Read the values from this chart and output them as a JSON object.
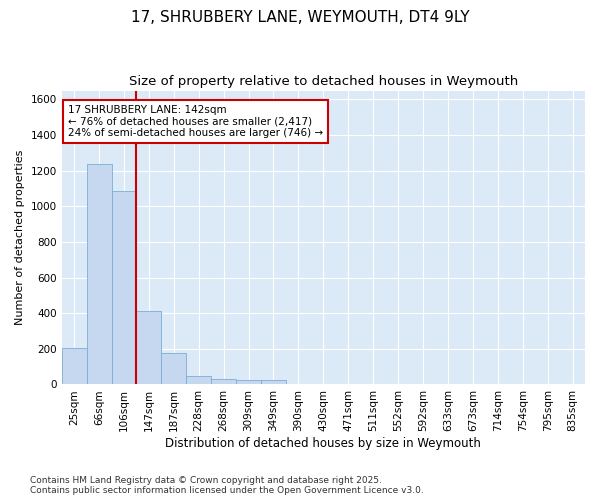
{
  "title": "17, SHRUBBERY LANE, WEYMOUTH, DT4 9LY",
  "subtitle": "Size of property relative to detached houses in Weymouth",
  "xlabel": "Distribution of detached houses by size in Weymouth",
  "ylabel": "Number of detached properties",
  "categories": [
    "25sqm",
    "66sqm",
    "106sqm",
    "147sqm",
    "187sqm",
    "228sqm",
    "268sqm",
    "309sqm",
    "349sqm",
    "390sqm",
    "430sqm",
    "471sqm",
    "511sqm",
    "552sqm",
    "592sqm",
    "633sqm",
    "673sqm",
    "714sqm",
    "754sqm",
    "795sqm",
    "835sqm"
  ],
  "values": [
    205,
    1235,
    1085,
    415,
    175,
    50,
    30,
    25,
    25,
    0,
    0,
    0,
    0,
    0,
    0,
    0,
    0,
    0,
    0,
    0,
    0
  ],
  "bar_color": "#c5d8ef",
  "bar_edge_color": "#7aaed4",
  "vline_color": "#cc0000",
  "annotation_line1": "17 SHRUBBERY LANE: 142sqm",
  "annotation_line2": "← 76% of detached houses are smaller (2,417)",
  "annotation_line3": "24% of semi-detached houses are larger (746) →",
  "annotation_box_edge_color": "#cc0000",
  "ylim": [
    0,
    1650
  ],
  "yticks": [
    0,
    200,
    400,
    600,
    800,
    1000,
    1200,
    1400,
    1600
  ],
  "plot_bg_color": "#dce9f7",
  "fig_bg_color": "#ffffff",
  "grid_color": "#ffffff",
  "footnote": "Contains HM Land Registry data © Crown copyright and database right 2025.\nContains public sector information licensed under the Open Government Licence v3.0.",
  "title_fontsize": 11,
  "subtitle_fontsize": 9.5,
  "xlabel_fontsize": 8.5,
  "ylabel_fontsize": 8,
  "tick_fontsize": 7.5,
  "footnote_fontsize": 6.5,
  "annotation_fontsize": 7.5
}
